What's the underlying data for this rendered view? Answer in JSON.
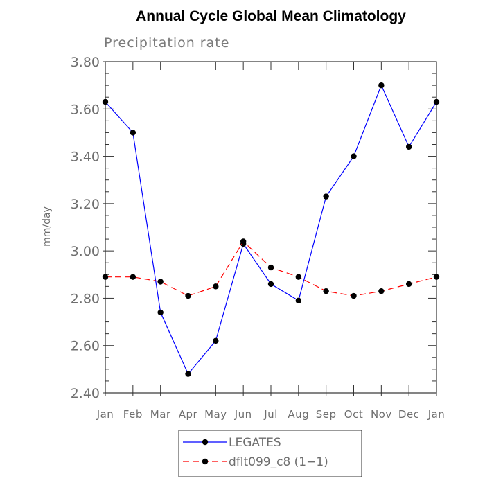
{
  "chart_data": {
    "type": "line",
    "title": "Annual Cycle Global Mean Climatology",
    "subtitle": "Precipitation rate",
    "ylabel": "mm/day",
    "xlabel": "",
    "categories": [
      "Jan",
      "Feb",
      "Mar",
      "Apr",
      "May",
      "Jun",
      "Jul",
      "Aug",
      "Sep",
      "Oct",
      "Nov",
      "Dec",
      "Jan"
    ],
    "ylim": [
      2.4,
      3.8
    ],
    "yticks": [
      "2.40",
      "2.60",
      "2.80",
      "3.00",
      "3.20",
      "3.40",
      "3.60",
      "3.80"
    ],
    "grid": false,
    "legend_position": "bottom",
    "series": [
      {
        "name": "LEGATES",
        "color": "#0000ff",
        "line_style": "solid",
        "marker": "filled-circle",
        "values": [
          3.63,
          3.5,
          2.74,
          2.48,
          2.62,
          3.03,
          2.86,
          2.79,
          3.23,
          3.4,
          3.7,
          3.44,
          3.63
        ]
      },
      {
        "name": "dflt099_c8 (1−1)",
        "color": "#ff0000",
        "line_style": "dashed",
        "marker": "filled-circle",
        "values": [
          2.89,
          2.89,
          2.87,
          2.81,
          2.85,
          3.04,
          2.93,
          2.89,
          2.83,
          2.81,
          2.83,
          2.86,
          2.89
        ]
      }
    ]
  }
}
